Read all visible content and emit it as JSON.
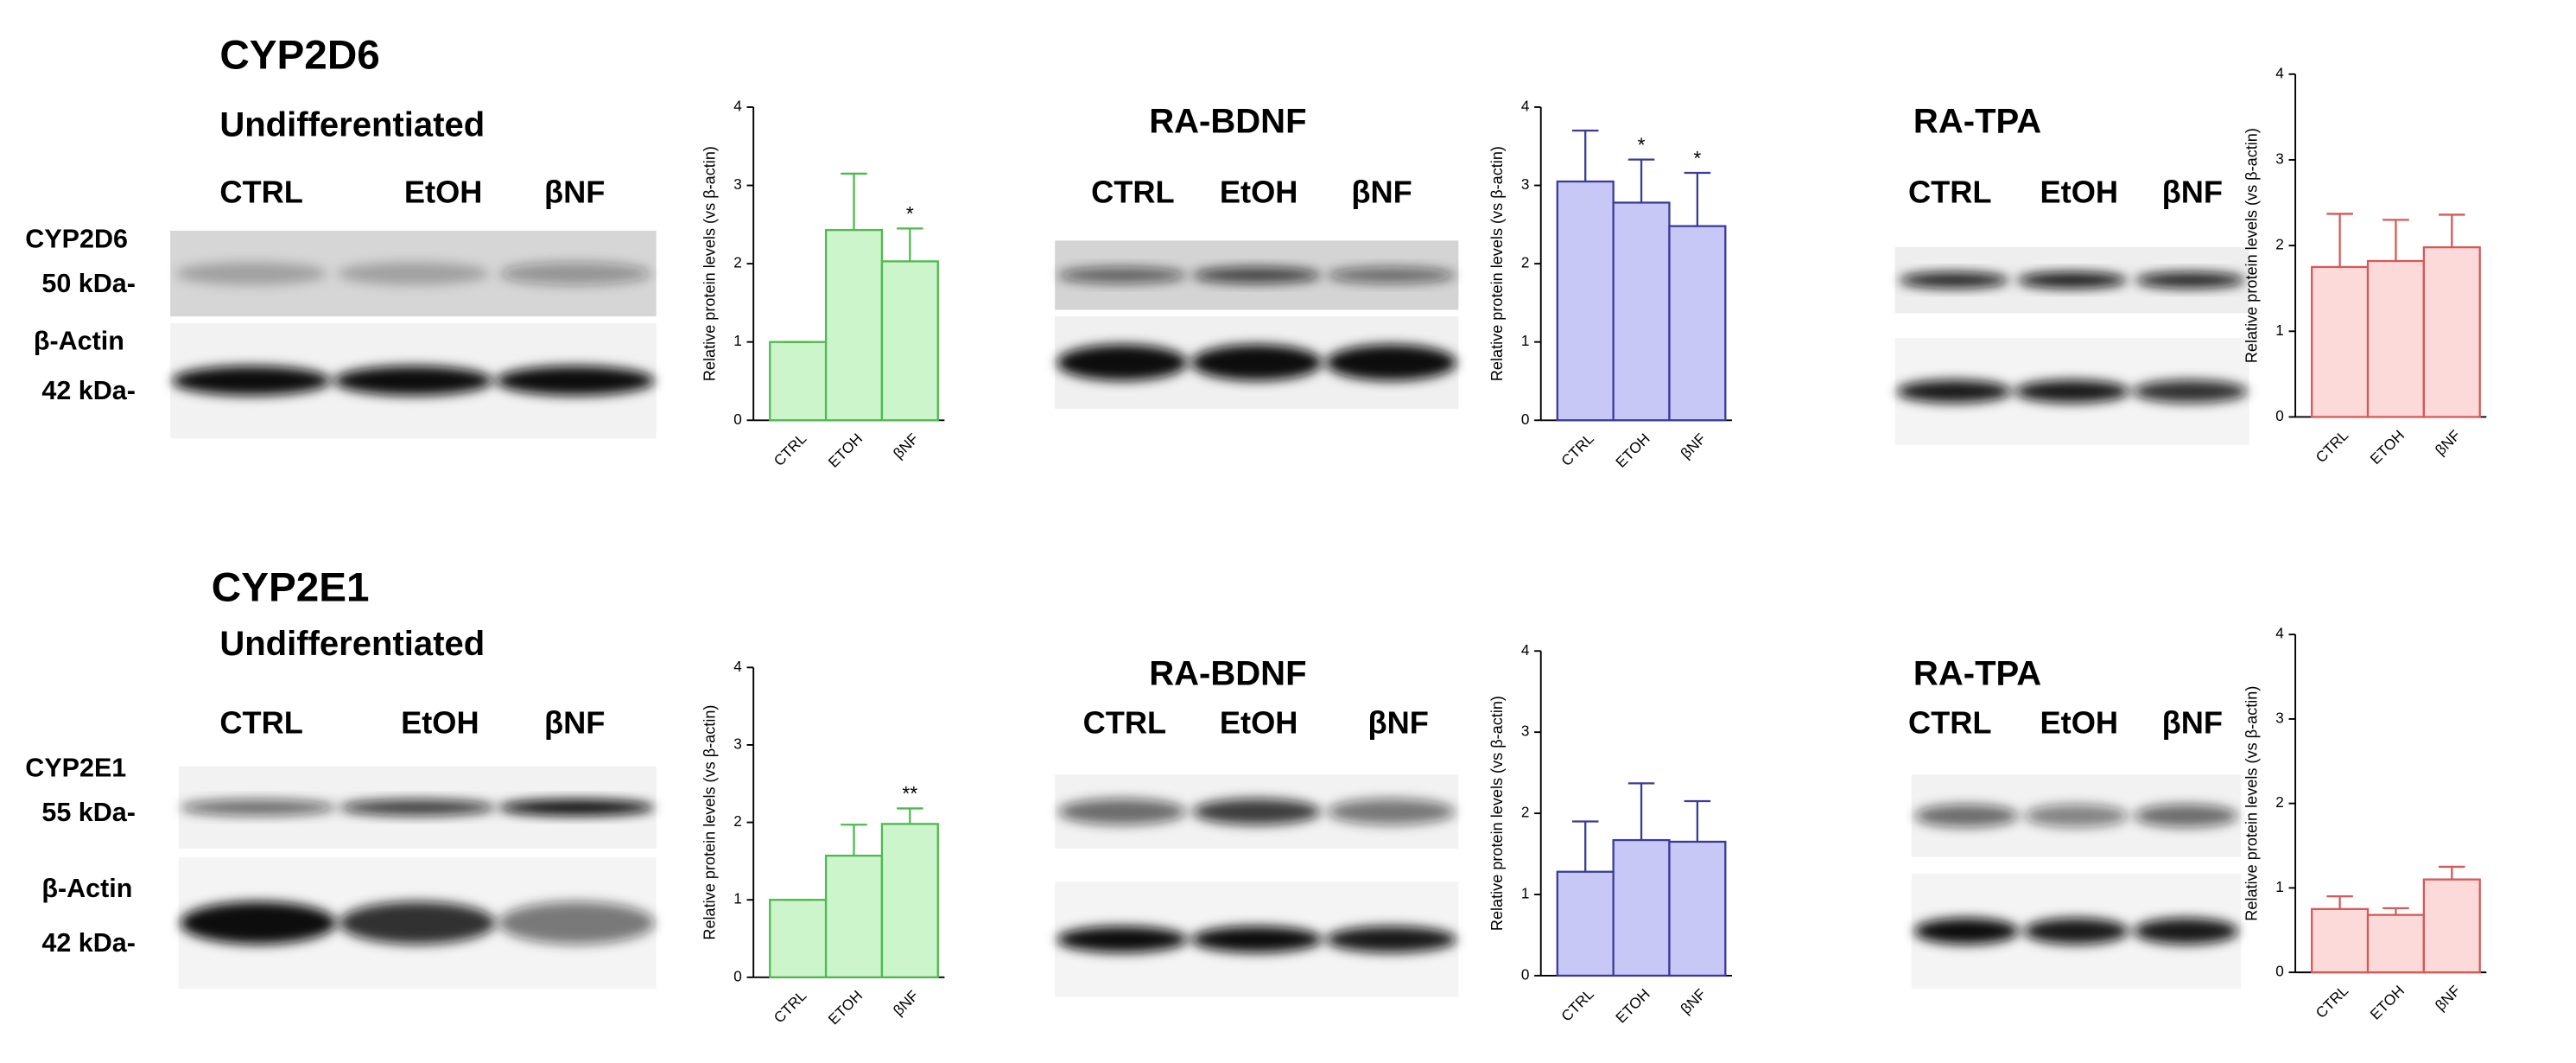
{
  "sections": [
    {
      "title": "CYP2D6",
      "band_labels": [
        "CYP2D6",
        "50 kDa-",
        "β-Actin",
        "42 kDa-"
      ],
      "panels": [
        {
          "title": "Undifferentiated",
          "lanes": [
            "CTRL",
            "EtOH",
            "βNF"
          ]
        },
        {
          "title": "RA-BDNF",
          "lanes": [
            "CTRL",
            "EtOH",
            "βNF"
          ]
        },
        {
          "title": "RA-TPA",
          "lanes": [
            "CTRL",
            "EtOH",
            "βNF"
          ]
        }
      ]
    },
    {
      "title": "CYP2E1",
      "band_labels": [
        "CYP2E1",
        "55 kDa-",
        "β-Actin",
        "42 kDa-"
      ],
      "panels": [
        {
          "title": "Undifferentiated",
          "lanes": [
            "CTRL",
            "EtOH",
            "βNF"
          ]
        },
        {
          "title": "RA-BDNF",
          "lanes": [
            "CTRL",
            "EtOH",
            "βNF"
          ]
        },
        {
          "title": "RA-TPA",
          "lanes": [
            "CTRL",
            "EtOH",
            "βNF"
          ]
        }
      ]
    }
  ],
  "chart_data": [
    {
      "type": "bar",
      "ylabel": "Relative protein levels (vs  β-actin)",
      "categories": [
        "CTRL",
        "ETOH",
        "βNF"
      ],
      "values": [
        1.0,
        2.43,
        2.03
      ],
      "errors": [
        0,
        0.72,
        0.42
      ],
      "color": "#ccf5cc",
      "edge_color": "#4cba4c",
      "ylim": [
        0,
        4
      ],
      "yticks": [
        0,
        1,
        2,
        3,
        4
      ],
      "annotations": [
        {
          "category": "βNF",
          "text": "*"
        }
      ]
    },
    {
      "type": "bar",
      "ylabel": "Relative protein levels (vs  β-actin)",
      "categories": [
        "CTRL",
        "ETOH",
        "βNF"
      ],
      "values": [
        3.05,
        2.78,
        2.48
      ],
      "errors": [
        0.65,
        0.55,
        0.68
      ],
      "color": "#c8c8f6",
      "edge_color": "#3a3a9a",
      "ylim": [
        0,
        4
      ],
      "yticks": [
        0,
        1,
        2,
        3,
        4
      ],
      "annotations": [
        {
          "category": "ETOH",
          "text": "*"
        },
        {
          "category": "βNF",
          "text": "*"
        }
      ]
    },
    {
      "type": "bar",
      "ylabel": "Relative protein levels (vs  β-actin)",
      "categories": [
        "CTRL",
        "ETOH",
        "βNF"
      ],
      "values": [
        1.75,
        1.82,
        1.98
      ],
      "errors": [
        0.62,
        0.48,
        0.38
      ],
      "color": "#fcdada",
      "edge_color": "#d65858",
      "ylim": [
        0,
        4
      ],
      "yticks": [
        0,
        1,
        2,
        3,
        4
      ],
      "annotations": []
    },
    {
      "type": "bar",
      "ylabel": "Relative protein levels (vs  β-actin)",
      "categories": [
        "CTRL",
        "ETOH",
        "βNF"
      ],
      "values": [
        1.0,
        1.57,
        1.98
      ],
      "errors": [
        0,
        0.4,
        0.2
      ],
      "color": "#ccf5cc",
      "edge_color": "#4cba4c",
      "ylim": [
        0,
        4
      ],
      "yticks": [
        0,
        1,
        2,
        3,
        4
      ],
      "annotations": [
        {
          "category": "βNF",
          "text": "**"
        }
      ]
    },
    {
      "type": "bar",
      "ylabel": "Relative protein levels (vs  β-actin)",
      "categories": [
        "CTRL",
        "ETOH",
        "βNF"
      ],
      "values": [
        1.28,
        1.67,
        1.65
      ],
      "errors": [
        0.62,
        0.7,
        0.5
      ],
      "color": "#c8c8f6",
      "edge_color": "#3a3a9a",
      "ylim": [
        0,
        4
      ],
      "yticks": [
        0,
        1,
        2,
        3,
        4
      ],
      "annotations": []
    },
    {
      "type": "bar",
      "ylabel": "Relative protein levels (vs  β-actin)",
      "categories": [
        "CTRL",
        "ETOH",
        "βNF"
      ],
      "values": [
        0.75,
        0.68,
        1.1
      ],
      "errors": [
        0.15,
        0.08,
        0.15
      ],
      "color": "#fcdada",
      "edge_color": "#d65858",
      "ylim": [
        0,
        4
      ],
      "yticks": [
        0,
        1,
        2,
        3,
        4
      ],
      "annotations": []
    }
  ]
}
